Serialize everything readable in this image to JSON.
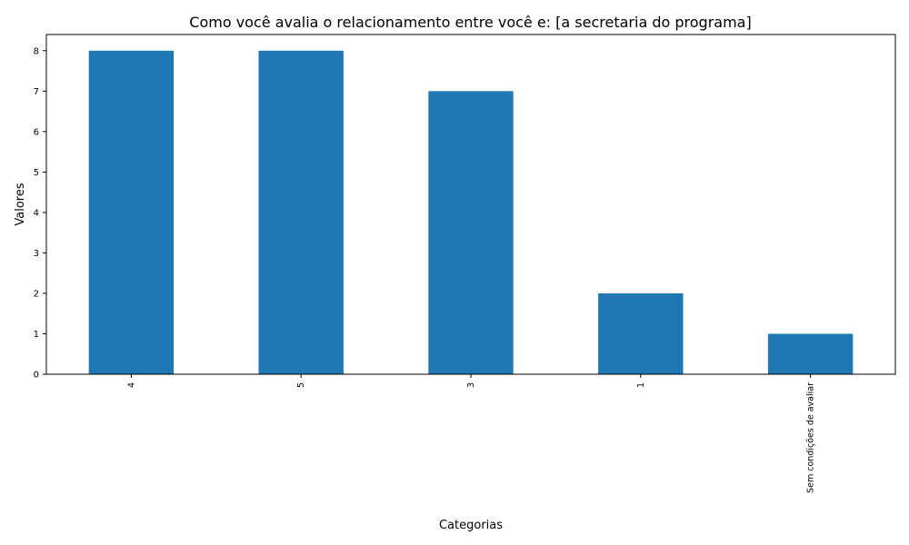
{
  "chart_data": {
    "type": "bar",
    "title": "Como você avalia o relacionamento entre você e: [a secretaria do programa]",
    "xlabel": "Categorias",
    "ylabel": "Valores",
    "categories": [
      "4",
      "5",
      "3",
      "1",
      "Sem condições de avaliar"
    ],
    "values": [
      8,
      8,
      7,
      2,
      1
    ],
    "ylim": [
      0,
      8.4
    ],
    "yticks": [
      0,
      1,
      2,
      3,
      4,
      5,
      6,
      7,
      8
    ],
    "grid": false,
    "legend": "none",
    "bar_color": "#1f77b4"
  }
}
